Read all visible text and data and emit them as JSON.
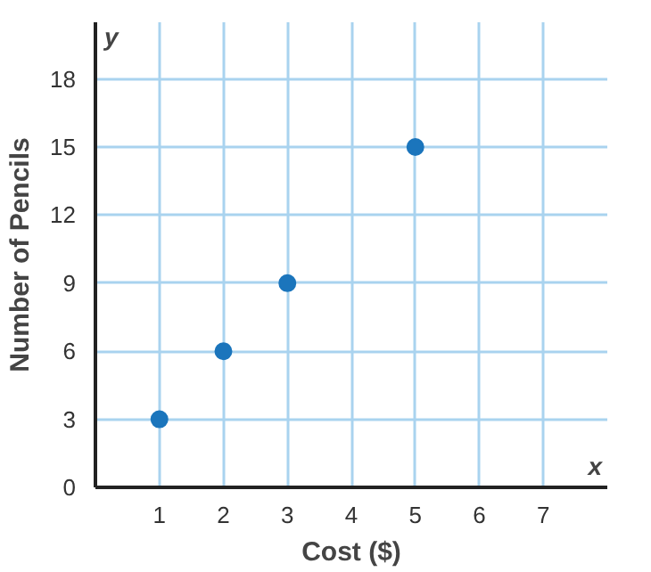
{
  "chart_data": {
    "type": "scatter",
    "xlabel": "Cost ($)",
    "ylabel": "Number of Pencils",
    "x": [
      1,
      2,
      3,
      5
    ],
    "series": [
      {
        "color": "#1b75bc",
        "values": [
          3,
          6,
          9,
          15
        ]
      }
    ],
    "xlim": [
      0,
      8
    ],
    "ylim": [
      0,
      20.5
    ],
    "xticks": [
      1,
      2,
      3,
      4,
      5,
      6,
      7
    ],
    "yticks": [
      0,
      3,
      6,
      9,
      12,
      15,
      18
    ],
    "grid": true,
    "marker": "circle",
    "annotations": [
      "x",
      "y"
    ]
  }
}
